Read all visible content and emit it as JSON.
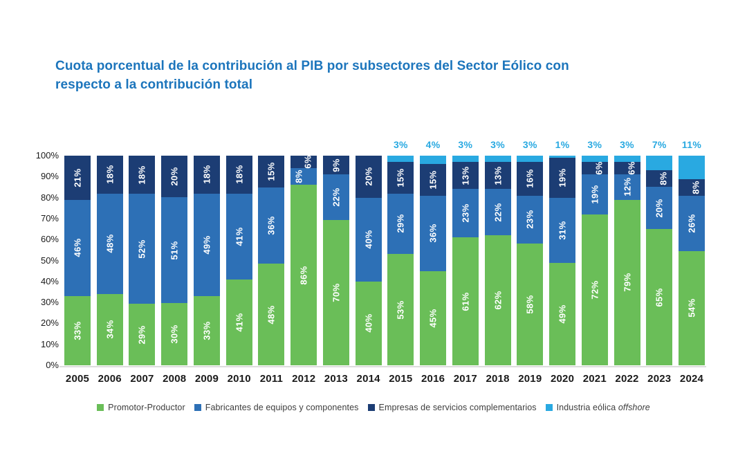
{
  "title": {
    "text": "Cuota porcentual de la contribución al PIB por subsectores del Sector Eólico con respecto a la contribución total",
    "color": "#1c75bc"
  },
  "chart_data": {
    "type": "bar",
    "stacked": true,
    "orientation": "vertical",
    "title": "Cuota porcentual de la contribución al PIB por subsectores del Sector Eólico con respecto a la contribución total",
    "categories": [
      "2005",
      "2006",
      "2007",
      "2008",
      "2009",
      "2010",
      "2011",
      "2012",
      "2013",
      "2014",
      "2015",
      "2016",
      "2017",
      "2018",
      "2019",
      "2020",
      "2021",
      "2022",
      "2023",
      "2024"
    ],
    "series": [
      {
        "name": "Promotor-Productor",
        "color": "#6abe58",
        "label_position": "inside-rotated",
        "values": [
          33,
          34,
          29,
          30,
          33,
          41,
          48,
          86,
          70,
          40,
          53,
          45,
          61,
          62,
          58,
          49,
          72,
          79,
          65,
          54
        ]
      },
      {
        "name": "Fabricantes de equipos y componentes",
        "color": "#2d70b6",
        "label_position": "inside-rotated",
        "values": [
          46,
          48,
          52,
          51,
          49,
          41,
          36,
          8,
          22,
          40,
          29,
          36,
          23,
          22,
          23,
          31,
          19,
          12,
          20,
          26
        ]
      },
      {
        "name": "Empresas de servicios complementarios",
        "color": "#1c3d74",
        "label_position": "inside-rotated",
        "values": [
          21,
          18,
          18,
          20,
          18,
          18,
          15,
          6,
          9,
          20,
          15,
          15,
          13,
          13,
          16,
          19,
          6,
          6,
          8,
          8
        ]
      },
      {
        "name": "Industria eólica offshore",
        "color": "#29a9e1",
        "label_position": "above-bar",
        "values": [
          0,
          0,
          0,
          0,
          0,
          0,
          0,
          0,
          0,
          0,
          3,
          4,
          3,
          3,
          3,
          1,
          3,
          3,
          7,
          11
        ]
      }
    ],
    "value_suffix": "%",
    "y_axis": {
      "min": 0,
      "max": 100,
      "tick_values": [
        0,
        10,
        20,
        30,
        40,
        50,
        60,
        70,
        80,
        90,
        100
      ],
      "ticks": [
        "0%",
        "10%",
        "20%",
        "30%",
        "40%",
        "50%",
        "60%",
        "70%",
        "80%",
        "90%",
        "100%"
      ]
    },
    "grid": false,
    "legend_position": "bottom"
  },
  "legend": {
    "items": [
      {
        "label": "Promotor-Productor",
        "color": "#6abe58"
      },
      {
        "label": "Fabricantes de equipos  y componentes",
        "color": "#2d70b6"
      },
      {
        "label": "Empresas de servicios complementarios",
        "color": "#1c3d74"
      },
      {
        "label": "Industria eólica",
        "label_italic": "offshore",
        "color": "#29a9e1"
      }
    ]
  },
  "axis": {
    "tick_color": "#1a1a1a",
    "baseline_color": "#dcdcdc",
    "bar_label_color": "#ffffff"
  }
}
